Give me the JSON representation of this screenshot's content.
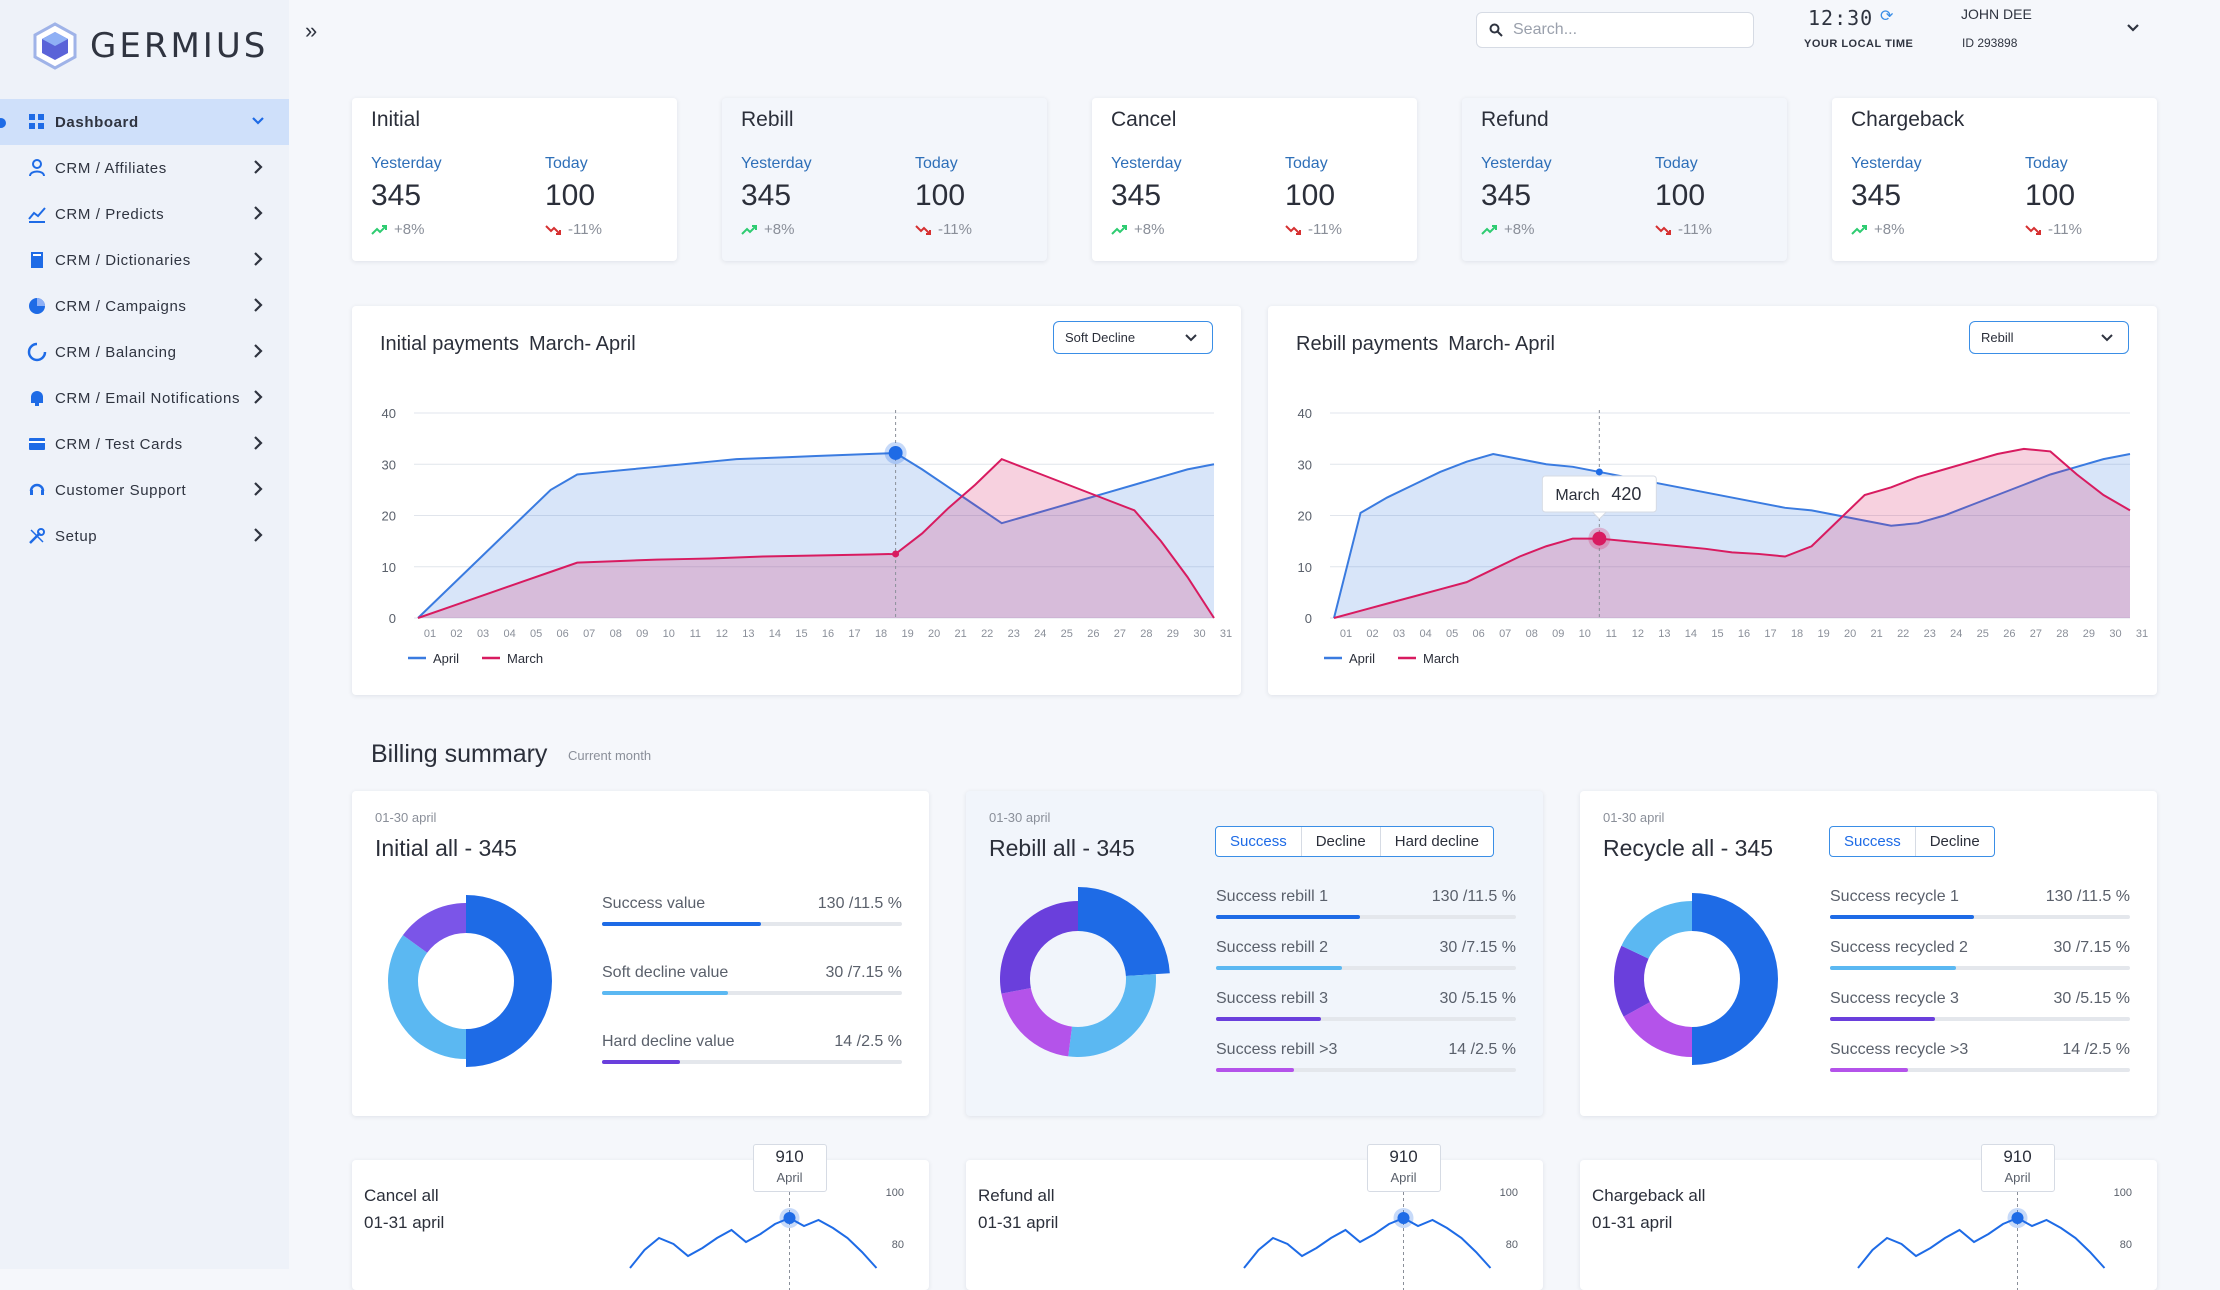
{
  "app": {
    "logo_text": "GERMIUS"
  },
  "sidebar": {
    "items": [
      {
        "label": "Dashboard",
        "icon": "dashboard-icon"
      },
      {
        "label": "CRM / Affiliates",
        "icon": "affiliates-icon"
      },
      {
        "label": "CRM / Predicts",
        "icon": "predicts-icon"
      },
      {
        "label": "CRM / Dictionaries",
        "icon": "dictionaries-icon"
      },
      {
        "label": "CRM / Campaigns",
        "icon": "campaigns-icon"
      },
      {
        "label": "CRM / Balancing",
        "icon": "balancing-icon"
      },
      {
        "label": "CRM / Email Notifications",
        "icon": "notifications-icon"
      },
      {
        "label": "CRM / Test Cards",
        "icon": "cards-icon"
      },
      {
        "label": "Customer Support",
        "icon": "support-icon"
      },
      {
        "label": "Setup",
        "icon": "setup-icon"
      }
    ]
  },
  "header": {
    "search_placeholder": "Search...",
    "time": "12:30",
    "time_label": "YOUR LOCAL TIME",
    "user_name": "JOHN DEE",
    "user_id": "ID 293898"
  },
  "stats": [
    {
      "title": "Initial",
      "yesterday_label": "Yesterday",
      "today_label": "Today",
      "yesterday": "345",
      "today": "100",
      "yesterday_change": "+8%",
      "today_change": "-11%"
    },
    {
      "title": "Rebill",
      "yesterday_label": "Yesterday",
      "today_label": "Today",
      "yesterday": "345",
      "today": "100",
      "yesterday_change": "+8%",
      "today_change": "-11%"
    },
    {
      "title": "Cancel",
      "yesterday_label": "Yesterday",
      "today_label": "Today",
      "yesterday": "345",
      "today": "100",
      "yesterday_change": "+8%",
      "today_change": "-11%"
    },
    {
      "title": "Refund",
      "yesterday_label": "Yesterday",
      "today_label": "Today",
      "yesterday": "345",
      "today": "100",
      "yesterday_change": "+8%",
      "today_change": "-11%"
    },
    {
      "title": "Chargeback",
      "yesterday_label": "Yesterday",
      "today_label": "Today",
      "yesterday": "345",
      "today": "100",
      "yesterday_change": "+8%",
      "today_change": "-11%"
    }
  ],
  "colors": {
    "up": "#2ecc71",
    "down": "#d63031",
    "april": "#3a7be0",
    "march": "#d81b60",
    "accent": "#1e6be6"
  },
  "panels": [
    {
      "title": "Initial payments",
      "period": "March- April",
      "dropdown": "Soft Decline"
    },
    {
      "title": "Rebill payments",
      "period": "March- April",
      "dropdown": "Rebill",
      "tooltip_label": "March",
      "tooltip_value": "420"
    }
  ],
  "chart_data": [
    {
      "type": "area",
      "x": [
        "01",
        "02",
        "03",
        "04",
        "05",
        "06",
        "07",
        "08",
        "09",
        "10",
        "11",
        "12",
        "13",
        "14",
        "15",
        "16",
        "17",
        "18",
        "19",
        "20",
        "21",
        "22",
        "23",
        "24",
        "25",
        "26",
        "27",
        "28",
        "29",
        "30",
        "31"
      ],
      "ylim": [
        0,
        40
      ],
      "yticks": [
        "0",
        "10",
        "20",
        "30",
        "40"
      ],
      "series": [
        {
          "name": "April",
          "values": [
            0,
            5,
            10,
            15,
            20,
            25,
            28,
            28.5,
            29,
            29.5,
            30,
            30.5,
            31,
            31.2,
            31.4,
            31.6,
            31.8,
            32,
            32.2,
            29,
            25.5,
            22,
            18.5,
            20,
            21.5,
            23,
            24.5,
            26,
            27.5,
            29,
            30
          ]
        },
        {
          "name": "March",
          "values": [
            0,
            1.8,
            3.6,
            5.4,
            7.2,
            9,
            10.8,
            11,
            11.2,
            11.4,
            11.5,
            11.6,
            11.8,
            12,
            12.1,
            12.2,
            12.3,
            12.4,
            12.5,
            16.5,
            21.5,
            26,
            31,
            29,
            27,
            25,
            23,
            21,
            15,
            8,
            0
          ]
        }
      ]
    },
    {
      "type": "area",
      "x": [
        "01",
        "02",
        "03",
        "04",
        "05",
        "06",
        "07",
        "08",
        "09",
        "10",
        "11",
        "12",
        "13",
        "14",
        "15",
        "16",
        "17",
        "18",
        "19",
        "20",
        "21",
        "22",
        "23",
        "24",
        "25",
        "26",
        "27",
        "28",
        "29",
        "30",
        "31"
      ],
      "ylim": [
        0,
        40
      ],
      "yticks": [
        "0",
        "10",
        "20",
        "30",
        "40"
      ],
      "series": [
        {
          "name": "April",
          "values": [
            0,
            20.5,
            23.5,
            26,
            28.5,
            30.5,
            32,
            31,
            30,
            29.5,
            28.5,
            27.5,
            26.5,
            25.5,
            24.5,
            23.5,
            22.5,
            21.5,
            21,
            20,
            19,
            18,
            18.5,
            20,
            22,
            24,
            26,
            28,
            29.5,
            31,
            32
          ]
        },
        {
          "name": "March",
          "values": [
            0,
            1.4,
            2.8,
            4.2,
            5.6,
            7,
            9.5,
            12,
            14,
            15.5,
            15.5,
            15,
            14.5,
            14,
            13.5,
            12.8,
            12.5,
            12,
            14,
            19,
            24,
            25.5,
            27.5,
            29,
            30.5,
            32,
            33,
            32.5,
            28,
            24,
            21
          ]
        }
      ]
    }
  ],
  "billing": {
    "title": "Billing summary",
    "subtitle": "Current month",
    "cards": [
      {
        "date": "01-30 april",
        "title": "Initial all - 345",
        "tabs": [],
        "rows": [
          {
            "label": "Success value",
            "value": "130 /11.5 %",
            "fraction": 0.53,
            "color": "#1e6be6"
          },
          {
            "label": "Soft decline value",
            "value": "30 /7.15 %",
            "fraction": 0.42,
            "color": "#5bb8f2"
          },
          {
            "label": "Hard decline value",
            "value": "14 /2.5 %",
            "fraction": 0.26,
            "color": "#6a3fdc"
          }
        ],
        "donut": [
          {
            "value": 50,
            "color": "#1e6be6"
          },
          {
            "value": 35,
            "color": "#5bb8f2"
          },
          {
            "value": 15,
            "color": "#7b55e8"
          }
        ]
      },
      {
        "date": "01-30 april",
        "title": "Rebill all - 345",
        "tabs": [
          "Success",
          "Decline",
          "Hard decline"
        ],
        "rows": [
          {
            "label": "Success rebill 1",
            "value": "130 /11.5 %",
            "fraction": 0.48,
            "color": "#1e6be6"
          },
          {
            "label": "Success rebill 2",
            "value": "30 /7.15 %",
            "fraction": 0.42,
            "color": "#5bb8f2"
          },
          {
            "label": "Success rebill 3",
            "value": "30 /5.15 %",
            "fraction": 0.35,
            "color": "#6a3fdc"
          },
          {
            "label": "Success rebill >3",
            "value": "14 /2.5 %",
            "fraction": 0.26,
            "color": "#b453ea"
          }
        ],
        "donut": [
          {
            "value": 24,
            "color": "#1e6be6"
          },
          {
            "value": 28,
            "color": "#5bb8f2"
          },
          {
            "value": 20,
            "color": "#b453ea"
          },
          {
            "value": 28,
            "color": "#6a3fdc"
          }
        ]
      },
      {
        "date": "01-30 april",
        "title": "Recycle all - 345",
        "tabs": [
          "Success",
          "Decline"
        ],
        "rows": [
          {
            "label": "Success recycle 1",
            "value": "130 /11.5 %",
            "fraction": 0.48,
            "color": "#1e6be6"
          },
          {
            "label": "Success recycled 2",
            "value": "30 /7.15 %",
            "fraction": 0.42,
            "color": "#5bb8f2"
          },
          {
            "label": "Success recycle 3",
            "value": "30 /5.15 %",
            "fraction": 0.35,
            "color": "#6a3fdc"
          },
          {
            "label": "Success recycle >3",
            "value": "14 /2.5 %",
            "fraction": 0.26,
            "color": "#b453ea"
          }
        ],
        "donut": [
          {
            "value": 50,
            "color": "#1e6be6"
          },
          {
            "value": 17,
            "color": "#b453ea"
          },
          {
            "value": 15,
            "color": "#6a3fdc"
          },
          {
            "value": 18,
            "color": "#5bb8f2"
          }
        ]
      }
    ]
  },
  "mini_cards": [
    {
      "title": "Cancel all",
      "date": "01-31 april",
      "tooltip_value": "910",
      "tooltip_label": "April",
      "ticks": [
        "100",
        "80"
      ]
    },
    {
      "title": "Refund all",
      "date": "01-31 april",
      "tooltip_value": "910",
      "tooltip_label": "April",
      "ticks": [
        "100",
        "80"
      ]
    },
    {
      "title": "Chargeback all",
      "date": "01-31 april",
      "tooltip_value": "910",
      "tooltip_label": "April",
      "ticks": [
        "100",
        "80"
      ]
    }
  ]
}
